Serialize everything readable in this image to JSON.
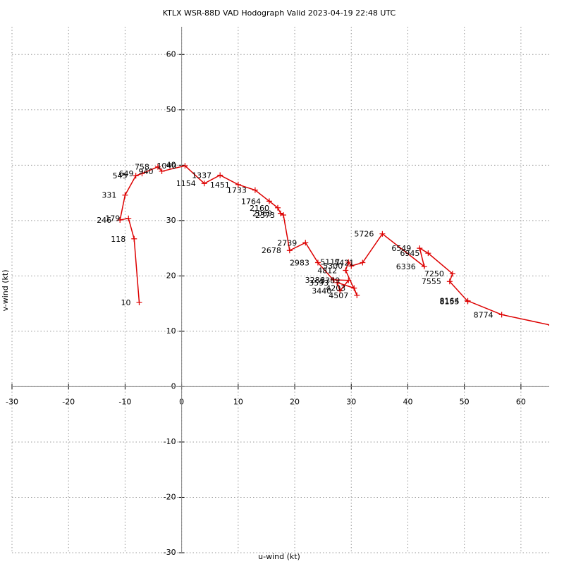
{
  "chart_data": {
    "type": "hodograph",
    "title": "KTLX WSR-88D VAD Hodograph Valid 2023-04-19 22:48 UTC",
    "x_label": "u-wind (kt)",
    "y_label": "v-wind (kt)",
    "xlim": [
      -30,
      65
    ],
    "ylim": [
      -30,
      65
    ],
    "xticks": [
      -30,
      -20,
      -10,
      0,
      10,
      20,
      30,
      40,
      50,
      60
    ],
    "yticks": [
      -30,
      -20,
      -10,
      0,
      10,
      20,
      30,
      40,
      50,
      60
    ],
    "grid": true,
    "color": "#dd0000",
    "point_labels": [
      "10",
      "118",
      "179",
      "246",
      "331",
      "545",
      "649",
      "758",
      "940",
      "1040",
      "1154",
      "1337",
      "1451",
      "1733",
      "1764",
      "2160",
      "2069",
      "2373",
      "2678",
      "2739",
      "2983",
      "3286",
      "3389",
      "3440",
      "3593",
      "4203",
      "4507",
      "4812",
      "5117",
      "5300",
      "5421",
      "5726",
      "6336",
      "6549",
      "6945",
      "7250",
      "7555",
      "8155",
      "8164",
      "8774",
      null
    ],
    "x": [
      -7.5,
      -8.4,
      -9.4,
      -10.9,
      -10,
      -8.1,
      -7.0,
      -4.2,
      -3.5,
      0.6,
      4.0,
      6.8,
      10,
      13,
      15.5,
      17,
      17.5,
      18,
      19.1,
      21.9,
      24.1,
      26.8,
      29.5,
      28,
      27.5,
      30.5,
      31.0,
      29,
      29.5,
      30,
      32,
      35.5,
      42.9,
      42.1,
      43.6,
      47.9,
      47.4,
      50.6,
      50.6,
      56.6,
      65.3
    ],
    "values": [
      15.2,
      26.7,
      30.4,
      30.1,
      34.6,
      38.1,
      38.5,
      39.7,
      38.9,
      39.9,
      36.7,
      38.2,
      36.5,
      35.5,
      33.5,
      32.3,
      31.3,
      31,
      24.6,
      26,
      22.4,
      19.3,
      19.2,
      17.3,
      18.8,
      17.8,
      16.5,
      21,
      22.5,
      21.8,
      22.4,
      27.6,
      21.7,
      25,
      24.1,
      20.4,
      19,
      15.4,
      15.5,
      13,
      11.1
    ]
  }
}
